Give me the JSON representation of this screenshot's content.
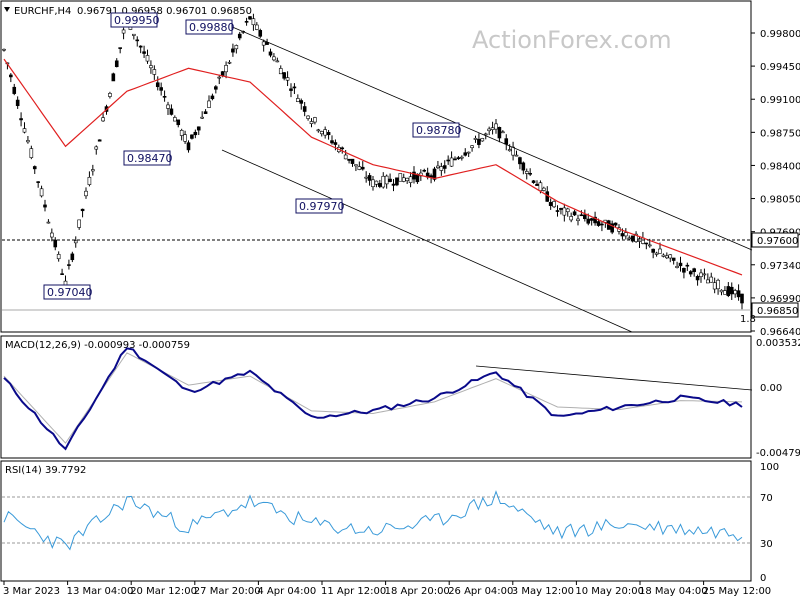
{
  "header": {
    "symbol": "EURCHF,H4",
    "ohlc": "0.96791 0.96958 0.96701 0.96850"
  },
  "watermark": "ActionForex.com",
  "colors": {
    "ma": "#e02020",
    "candle": "#000000",
    "macd": "#0a0a8a",
    "signal": "#b0b0b0",
    "rsi": "#3a9ad9",
    "channel": "#000000"
  },
  "price_panel": {
    "y_ticks": [
      "0.99800",
      "0.99450",
      "0.99100",
      "0.98750",
      "0.98400",
      "0.98050",
      "0.97690",
      "0.97340",
      "0.96990",
      "0.96640"
    ],
    "current_price": "0.96850",
    "level_tag": "0.97600",
    "markers": [
      {
        "label": "0.99950"
      },
      {
        "label": "0.99880"
      },
      {
        "label": "0.98470"
      },
      {
        "label": "0.97040"
      },
      {
        "label": "0.98780"
      },
      {
        "label": "0.97970"
      }
    ],
    "partial_label": "1.8"
  },
  "macd_panel": {
    "title": "MACD(12,26,9) -0.000993 -0.000759",
    "y_ticks": [
      "0.003532",
      "0.00",
      "-0.004793"
    ]
  },
  "rsi_panel": {
    "title": "RSI(14) 39.7792",
    "y_ticks": [
      "100",
      "70",
      "30",
      "0"
    ]
  },
  "x_labels": [
    "3 Mar 2023",
    "13 Mar 04:00",
    "20 Mar 12:00",
    "27 Mar 20:00",
    "4 Apr 04:00",
    "11 Apr 12:00",
    "18 Apr 20:00",
    "26 Apr 04:00",
    "3 May 12:00",
    "10 May 20:00",
    "18 May 04:00",
    "25 May 12:00"
  ],
  "chart_data": {
    "type": "line",
    "title": "EURCHF,H4",
    "price": {
      "x": [
        0,
        10,
        20,
        30,
        40,
        50,
        60,
        70,
        80,
        90,
        100,
        110,
        120
      ],
      "values": [
        0.9955,
        0.97,
        0.999,
        0.985,
        0.999,
        0.988,
        0.981,
        0.982,
        0.987,
        0.978,
        0.976,
        0.972,
        0.9685
      ],
      "ma": [
        0.9945,
        0.985,
        0.991,
        0.9935,
        0.992,
        0.986,
        0.983,
        0.9815,
        0.983,
        0.979,
        0.976,
        0.9735,
        0.971
      ],
      "ylim": [
        0.965,
        1.0005
      ],
      "horizontal_level": 0.976,
      "current": 0.9685
    },
    "macd": {
      "x": [
        0,
        10,
        20,
        30,
        40,
        50,
        60,
        70,
        80,
        90,
        100,
        110,
        120
      ],
      "macd": [
        0.001,
        -0.0045,
        0.0035,
        0.0,
        0.0015,
        -0.002,
        -0.0015,
        -0.0005,
        0.0015,
        -0.002,
        -0.0012,
        -0.0005,
        -0.001
      ],
      "signal": [
        0.0012,
        -0.004,
        0.003,
        0.0005,
        0.0012,
        -0.0015,
        -0.0017,
        -0.0008,
        0.001,
        -0.0012,
        -0.0014,
        -0.0007,
        -0.0008
      ],
      "ylim": [
        -0.005,
        0.004
      ]
    },
    "rsi": {
      "x": [
        0,
        10,
        20,
        30,
        40,
        50,
        60,
        70,
        80,
        90,
        100,
        110,
        120
      ],
      "values": [
        55,
        28,
        70,
        45,
        68,
        48,
        42,
        50,
        72,
        40,
        48,
        44,
        39.78
      ],
      "ylim": [
        0,
        100
      ],
      "levels": [
        70,
        30
      ]
    }
  }
}
